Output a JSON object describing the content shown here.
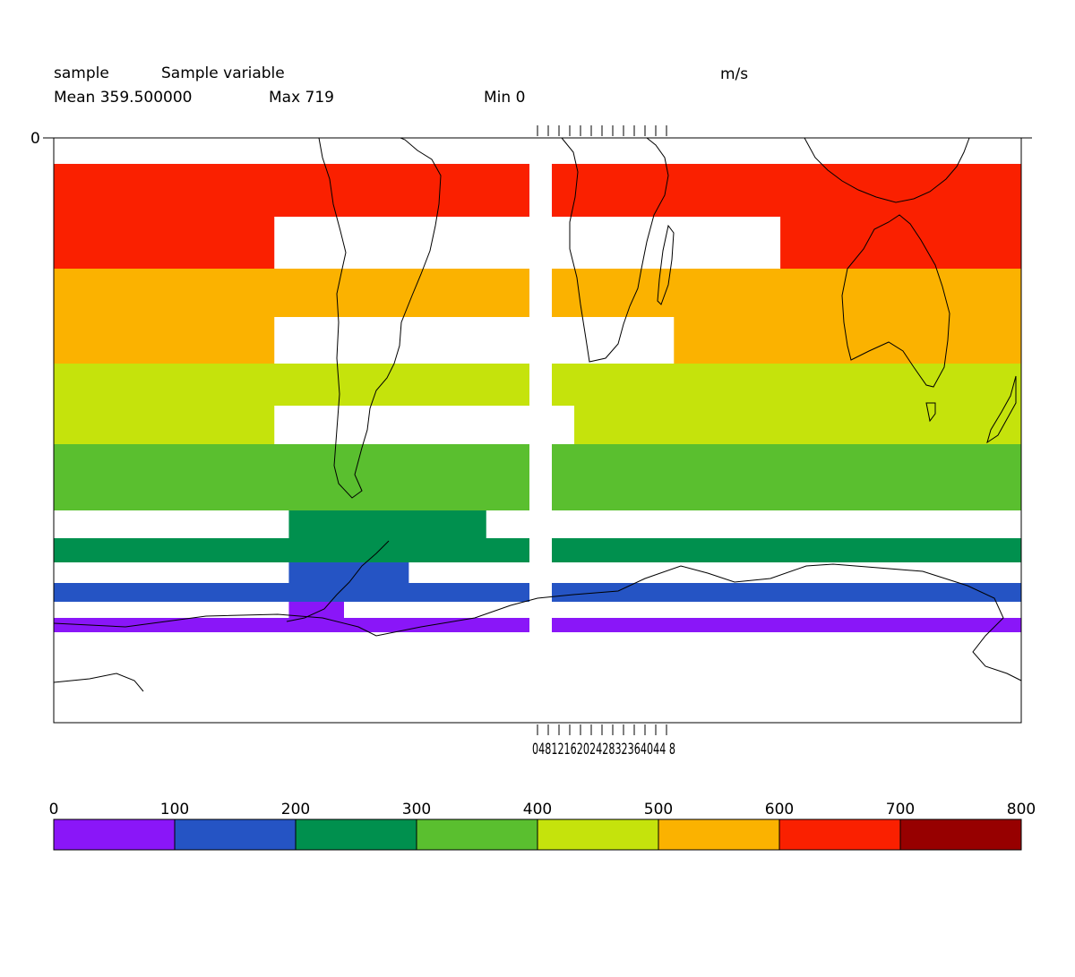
{
  "header": {
    "var_name": "sample",
    "var_long_name": "Sample variable",
    "units": "m/s",
    "mean_text": "Mean 359.500000",
    "max_text": "Max 719",
    "min_text": "Min 0"
  },
  "chart_data": {
    "type": "heatmap",
    "title": "Sample variable",
    "units": "m/s",
    "stats": {
      "mean": 359.5,
      "max": 719,
      "min": 0
    },
    "y_tick_labels": [
      "0"
    ],
    "x_tick_labels": [
      "0",
      "4",
      "8",
      "12",
      "16",
      "20",
      "24",
      "28",
      "32",
      "36",
      "40",
      "44",
      "48"
    ],
    "x_tick_text": "048121620242832364044 8",
    "colorbar": {
      "levels": [
        0,
        100,
        200,
        300,
        400,
        500,
        600,
        700,
        800
      ],
      "colors": [
        "#8a16f8",
        "#2554c4",
        "#00904e",
        "#5abf2f",
        "#c5e30c",
        "#fbb200",
        "#fa2000",
        "#970000"
      ]
    },
    "bands": [
      {
        "v": 650,
        "segments": [
          [
            0,
            1
          ]
        ]
      },
      {
        "v": 650,
        "segments": [
          [
            0,
            0.228
          ],
          [
            0.751,
            1
          ]
        ]
      },
      {
        "v": 550,
        "segments": [
          [
            0,
            1
          ]
        ]
      },
      {
        "v": 550,
        "segments": [
          [
            0,
            0.228
          ],
          [
            0.641,
            1
          ]
        ]
      },
      {
        "v": 450,
        "segments": [
          [
            0,
            1
          ]
        ]
      },
      {
        "v": 450,
        "segments": [
          [
            0,
            0.228
          ],
          [
            0.538,
            1
          ]
        ]
      },
      {
        "v": 350,
        "segments": [
          [
            0,
            1
          ]
        ]
      },
      {
        "v": 250,
        "segments": [
          [
            0.243,
            0.447
          ]
        ]
      },
      {
        "v": 250,
        "segments": [
          [
            0,
            1
          ]
        ]
      },
      {
        "v": 150,
        "segments": [
          [
            0.243,
            0.367
          ]
        ]
      },
      {
        "v": 150,
        "segments": [
          [
            0,
            1
          ]
        ]
      },
      {
        "v": 50,
        "segments": [
          [
            0.243,
            0.3
          ]
        ]
      },
      {
        "v": 50,
        "segments": [
          [
            0,
            1
          ]
        ]
      }
    ]
  }
}
